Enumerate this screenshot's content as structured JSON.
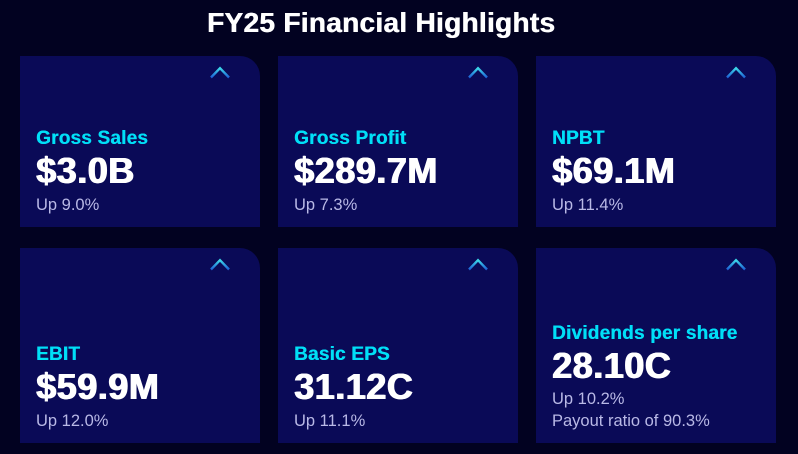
{
  "title": "FY25 Financial Highlights",
  "colors": {
    "background": "#020221",
    "card_background": "#0a0a57",
    "label_accent": "#00dff7",
    "value_text": "#ffffff",
    "subtext": "#b9b9e6",
    "arrow_gradient_top": "#3cd9e9",
    "arrow_gradient_bottom": "#1d5fd6"
  },
  "cards": [
    {
      "icon": "up-arrow-icon",
      "label": "Gross Sales",
      "value": "$3.0B",
      "sublines": [
        "Up 9.0%"
      ]
    },
    {
      "icon": "up-arrow-icon",
      "label": "Gross Profit",
      "value": "$289.7M",
      "sublines": [
        "Up 7.3%"
      ]
    },
    {
      "icon": "up-arrow-icon",
      "label": "NPBT",
      "value": "$69.1M",
      "sublines": [
        "Up 11.4%"
      ]
    },
    {
      "icon": "up-arrow-icon",
      "label": "EBIT",
      "value": "$59.9M",
      "sublines": [
        "Up 12.0%"
      ]
    },
    {
      "icon": "up-arrow-icon",
      "label": "Basic EPS",
      "value": "31.12C",
      "sublines": [
        "Up 11.1%"
      ]
    },
    {
      "icon": "up-arrow-icon",
      "label": "Dividends per share",
      "value": "28.10C",
      "sublines": [
        "Up 10.2%",
        "Payout ratio of 90.3%"
      ]
    }
  ]
}
